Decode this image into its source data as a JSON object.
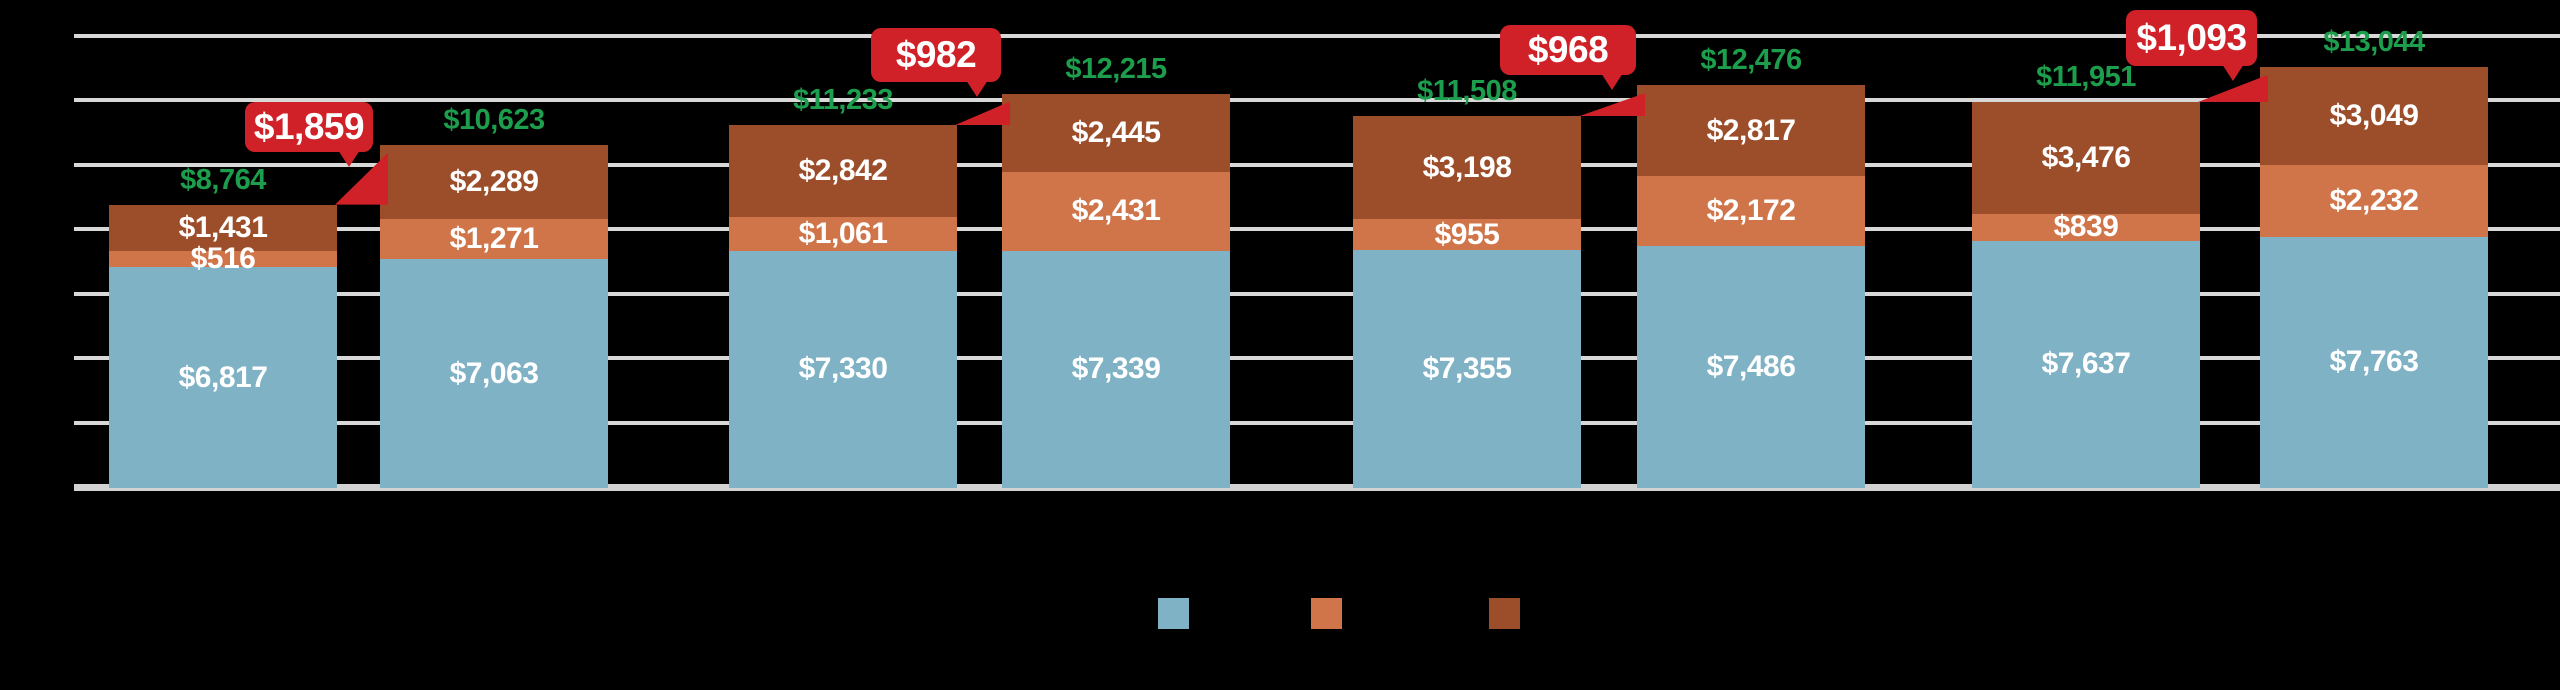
{
  "chart_data": {
    "type": "bar",
    "stacked": true,
    "title": "",
    "background_color": "#000000",
    "ylim": [
      0,
      14000
    ],
    "gridline_step": 2000,
    "gridline_color": "#D8D8D8",
    "gridlines_visible": true,
    "axis_tick_labels_visible": false,
    "num_bars": 8,
    "series": [
      {
        "name": "blue",
        "color": "#7FB2C5",
        "values": [
          6817,
          7063,
          7330,
          7339,
          7355,
          7486,
          7637,
          7763
        ],
        "labels": [
          "$6,817",
          "$7,063",
          "$7,330",
          "$7,339",
          "$7,355",
          "$7,486",
          "$7,637",
          "$7,763"
        ]
      },
      {
        "name": "orange",
        "color": "#D0754A",
        "values": [
          516,
          1271,
          1061,
          2431,
          955,
          2172,
          839,
          2232
        ],
        "labels": [
          "$516",
          "$1,271",
          "$1,061",
          "$2,431",
          "$955",
          "$2,172",
          "$839",
          "$2,232"
        ]
      },
      {
        "name": "brown",
        "color": "#9C4E2B",
        "values": [
          1431,
          2289,
          2842,
          2445,
          3198,
          2817,
          3476,
          3049
        ],
        "labels": [
          "$1,431",
          "$2,289",
          "$2,842",
          "$2,445",
          "$3,198",
          "$2,817",
          "$3,476",
          "$3,049"
        ]
      }
    ],
    "totals": {
      "color": "#1C9E4C",
      "values": [
        8764,
        10623,
        11233,
        12215,
        11508,
        12476,
        11951,
        13044
      ],
      "labels": [
        "$8,764",
        "$10,623",
        "$11,233",
        "$12,215",
        "$11,508",
        "$12,476",
        "$11,951",
        "$13,044"
      ]
    },
    "delta_badges": {
      "color": "#CF2127",
      "text_color": "#FFFFFF",
      "items": [
        {
          "label": "$1,859",
          "from_bar": 1,
          "to_bar": 2
        },
        {
          "label": "$982",
          "from_bar": 3,
          "to_bar": 4
        },
        {
          "label": "$968",
          "from_bar": 5,
          "to_bar": 6
        },
        {
          "label": "$1,093",
          "from_bar": 7,
          "to_bar": 8
        }
      ]
    },
    "legend": {
      "position": "bottom",
      "labels_visible": false,
      "entries": [
        {
          "name": "blue",
          "swatch_color": "#7FB2C5"
        },
        {
          "name": "orange",
          "swatch_color": "#D0754A"
        },
        {
          "name": "brown",
          "swatch_color": "#9C4E2B"
        }
      ]
    }
  }
}
